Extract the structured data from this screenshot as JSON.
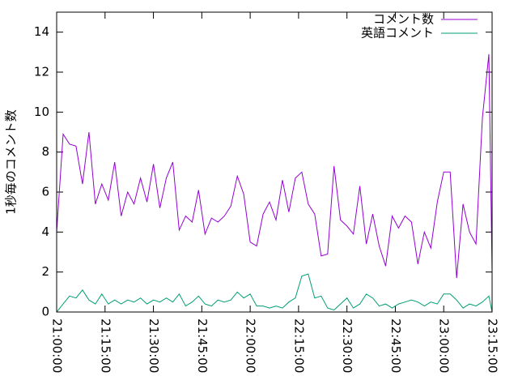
{
  "chart_data": {
    "type": "line",
    "ylabel": "1秒毎のコメント数",
    "x": [
      "21:00:00",
      "21:02:00",
      "21:04:00",
      "21:06:00",
      "21:08:00",
      "21:10:00",
      "21:12:00",
      "21:14:00",
      "21:16:00",
      "21:18:00",
      "21:20:00",
      "21:22:00",
      "21:24:00",
      "21:26:00",
      "21:28:00",
      "21:30:00",
      "21:32:00",
      "21:34:00",
      "21:36:00",
      "21:38:00",
      "21:40:00",
      "21:42:00",
      "21:44:00",
      "21:46:00",
      "21:48:00",
      "21:50:00",
      "21:52:00",
      "21:54:00",
      "21:56:00",
      "21:58:00",
      "22:00:00",
      "22:02:00",
      "22:04:00",
      "22:06:00",
      "22:08:00",
      "22:10:00",
      "22:12:00",
      "22:14:00",
      "22:16:00",
      "22:18:00",
      "22:20:00",
      "22:22:00",
      "22:24:00",
      "22:26:00",
      "22:28:00",
      "22:30:00",
      "22:32:00",
      "22:34:00",
      "22:36:00",
      "22:38:00",
      "22:40:00",
      "22:42:00",
      "22:44:00",
      "22:46:00",
      "22:48:00",
      "22:50:00",
      "22:52:00",
      "22:54:00",
      "22:56:00",
      "22:58:00",
      "23:00:00",
      "23:02:00",
      "23:04:00",
      "23:06:00",
      "23:08:00",
      "23:10:00",
      "23:12:00",
      "23:14:00",
      "23:15:00"
    ],
    "series": [
      {
        "name": "コメント数",
        "color": "#9400d3",
        "values": [
          4.0,
          8.9,
          8.4,
          8.3,
          6.4,
          9.0,
          5.4,
          6.4,
          5.6,
          7.5,
          4.8,
          6.0,
          5.4,
          6.7,
          5.5,
          7.4,
          5.2,
          6.7,
          7.5,
          4.1,
          4.8,
          4.5,
          6.1,
          3.9,
          4.7,
          4.5,
          4.8,
          5.3,
          6.8,
          5.9,
          3.5,
          3.3,
          4.9,
          5.5,
          4.6,
          6.6,
          5.0,
          6.7,
          7.0,
          5.4,
          4.9,
          2.8,
          2.9,
          7.3,
          4.6,
          4.3,
          3.9,
          6.3,
          3.4,
          4.9,
          3.3,
          2.3,
          4.8,
          4.2,
          4.8,
          4.5,
          2.4,
          4.0,
          3.2,
          5.5,
          7.0,
          7.0,
          1.7,
          5.4,
          4.0,
          3.4,
          9.7,
          12.9,
          2.0
        ]
      },
      {
        "name": "英語コメント",
        "color": "#009e73",
        "values": [
          0.0,
          0.4,
          0.8,
          0.7,
          1.1,
          0.6,
          0.4,
          0.9,
          0.4,
          0.6,
          0.4,
          0.6,
          0.5,
          0.7,
          0.4,
          0.6,
          0.5,
          0.7,
          0.5,
          0.9,
          0.3,
          0.5,
          0.8,
          0.4,
          0.3,
          0.6,
          0.5,
          0.6,
          1.0,
          0.7,
          0.9,
          0.3,
          0.3,
          0.2,
          0.3,
          0.2,
          0.5,
          0.7,
          1.8,
          1.9,
          0.7,
          0.8,
          0.2,
          0.1,
          0.4,
          0.7,
          0.2,
          0.4,
          0.9,
          0.7,
          0.3,
          0.4,
          0.2,
          0.4,
          0.5,
          0.6,
          0.5,
          0.3,
          0.5,
          0.4,
          0.9,
          0.9,
          0.6,
          0.2,
          0.4,
          0.3,
          0.5,
          0.8,
          0.0
        ]
      }
    ],
    "xlim": [
      "21:00:00",
      "23:15:00"
    ],
    "xticks": [
      "21:00:00",
      "21:15:00",
      "21:30:00",
      "21:45:00",
      "22:00:00",
      "22:15:00",
      "22:30:00",
      "22:45:00",
      "23:00:00",
      "23:15:00"
    ],
    "ylim": [
      0,
      15
    ],
    "yticks": [
      0,
      2,
      4,
      6,
      8,
      10,
      12,
      14
    ],
    "legend": "top-right"
  }
}
